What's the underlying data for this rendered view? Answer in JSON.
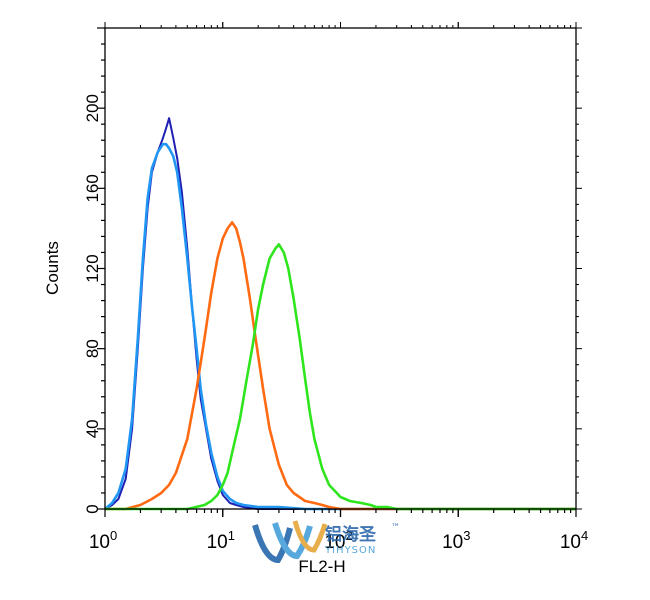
{
  "chart_data": {
    "type": "line",
    "title": "",
    "xlabel": "FL2-H",
    "ylabel": "Counts",
    "x_scale": "log",
    "xlim": [
      1,
      10000
    ],
    "ylim": [
      0,
      240
    ],
    "x_ticks": [
      {
        "value": 1,
        "base": "10",
        "exp": "0"
      },
      {
        "value": 10,
        "base": "10",
        "exp": "1"
      },
      {
        "value": 100,
        "base": "10",
        "exp": "2"
      },
      {
        "value": 1000,
        "base": "10",
        "exp": "3"
      },
      {
        "value": 10000,
        "base": "10",
        "exp": "4"
      }
    ],
    "y_ticks": [
      "0",
      "40",
      "80",
      "120",
      "160",
      "200"
    ],
    "series": [
      {
        "color": "#1f1fb4",
        "x": [
          1,
          1.15,
          1.3,
          1.5,
          1.7,
          1.9,
          2.1,
          2.3,
          2.5,
          2.8,
          3.1,
          3.3,
          3.5,
          3.8,
          4.1,
          4.5,
          5,
          5.5,
          6,
          6.5,
          7.2,
          8,
          9,
          10,
          11.5,
          13,
          15,
          20,
          30,
          50,
          100,
          10000
        ],
        "y": [
          0,
          2,
          5,
          15,
          40,
          80,
          120,
          150,
          168,
          178,
          185,
          190,
          195,
          185,
          175,
          158,
          130,
          100,
          75,
          55,
          40,
          25,
          14,
          7,
          3,
          2,
          1,
          0,
          0,
          0,
          0,
          0
        ]
      },
      {
        "color": "#2196f3",
        "x": [
          1,
          1.15,
          1.3,
          1.5,
          1.7,
          1.9,
          2.1,
          2.3,
          2.5,
          2.8,
          3.1,
          3.3,
          3.5,
          3.8,
          4.1,
          4.5,
          5,
          5.5,
          6,
          6.5,
          7.2,
          8,
          9,
          10,
          11.5,
          13,
          15,
          20,
          30,
          50,
          100,
          10000
        ],
        "y": [
          0,
          3,
          8,
          20,
          45,
          85,
          125,
          155,
          170,
          178,
          182,
          182,
          180,
          176,
          168,
          150,
          125,
          100,
          80,
          60,
          42,
          28,
          16,
          9,
          5,
          3,
          2,
          1,
          1,
          0,
          0,
          0
        ]
      },
      {
        "color": "#ff6a13",
        "x": [
          1,
          1.5,
          2,
          2.5,
          3,
          3.5,
          4,
          5,
          6,
          7,
          8,
          9,
          10,
          11,
          12,
          13,
          14,
          15,
          17,
          19,
          22,
          25,
          30,
          35,
          40,
          50,
          60,
          70,
          80,
          100,
          10000
        ],
        "y": [
          0,
          0,
          2,
          5,
          8,
          12,
          18,
          35,
          60,
          85,
          108,
          125,
          135,
          140,
          143,
          140,
          133,
          125,
          105,
          85,
          60,
          40,
          22,
          12,
          8,
          4,
          3,
          2,
          1,
          0,
          0
        ]
      },
      {
        "color": "#2ee51e",
        "x": [
          1,
          5,
          7,
          8,
          9,
          10,
          11,
          12,
          14,
          16,
          18,
          20,
          22,
          25,
          28,
          30,
          33,
          36,
          40,
          45,
          50,
          55,
          60,
          70,
          80,
          100,
          120,
          150,
          180,
          200,
          250,
          300,
          10000
        ],
        "y": [
          0,
          0,
          2,
          4,
          7,
          12,
          18,
          28,
          45,
          65,
          82,
          100,
          112,
          125,
          130,
          132,
          128,
          120,
          105,
          85,
          65,
          48,
          35,
          20,
          12,
          6,
          4,
          3,
          2,
          1,
          1,
          0,
          0
        ]
      }
    ]
  },
  "watermark": {
    "chinese": "铝海圣",
    "latin": "YIHYSON",
    "trademark": "™"
  }
}
